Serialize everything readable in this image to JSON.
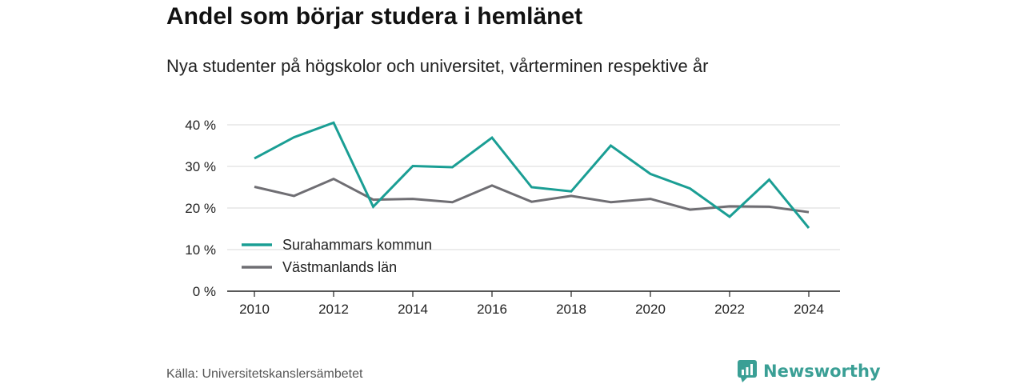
{
  "title": "Andel som börjar studera i hemlänet",
  "subtitle": "Nya studenter på högskolor och universitet, vårterminen respektive år",
  "source": "Källa: Universitetskanslersämbetet",
  "brand": {
    "name": "Newsworthy",
    "icon": "newsworthy-logo-icon",
    "color": "#3a9f95"
  },
  "chart_data": {
    "type": "line",
    "x": [
      2010,
      2011,
      2012,
      2013,
      2014,
      2015,
      2016,
      2017,
      2018,
      2019,
      2020,
      2021,
      2022,
      2023,
      2024
    ],
    "x_ticks": [
      2010,
      2012,
      2014,
      2016,
      2018,
      2020,
      2022,
      2024
    ],
    "y_ticks": [
      {
        "value": 0,
        "label": "0 %"
      },
      {
        "value": 10,
        "label": "10 %"
      },
      {
        "value": 20,
        "label": "20 %"
      },
      {
        "value": 30,
        "label": "30 %"
      },
      {
        "value": 40,
        "label": "40 %"
      }
    ],
    "ylim": [
      0,
      40
    ],
    "grid": true,
    "legend_position": "bottom-left",
    "series": [
      {
        "name": "Surahammars kommun",
        "color": "#1a9e94",
        "values": [
          31.9,
          37.0,
          40.5,
          20.3,
          30.1,
          29.8,
          36.9,
          25.0,
          24.0,
          35.0,
          28.2,
          24.7,
          17.9,
          26.8,
          15.2
        ]
      },
      {
        "name": "Västmanlands län",
        "color": "#6f6e73",
        "values": [
          25.1,
          22.9,
          27.0,
          22.0,
          22.2,
          21.4,
          25.4,
          21.5,
          22.9,
          21.4,
          22.2,
          19.6,
          20.4,
          20.3,
          19.0
        ]
      }
    ]
  }
}
